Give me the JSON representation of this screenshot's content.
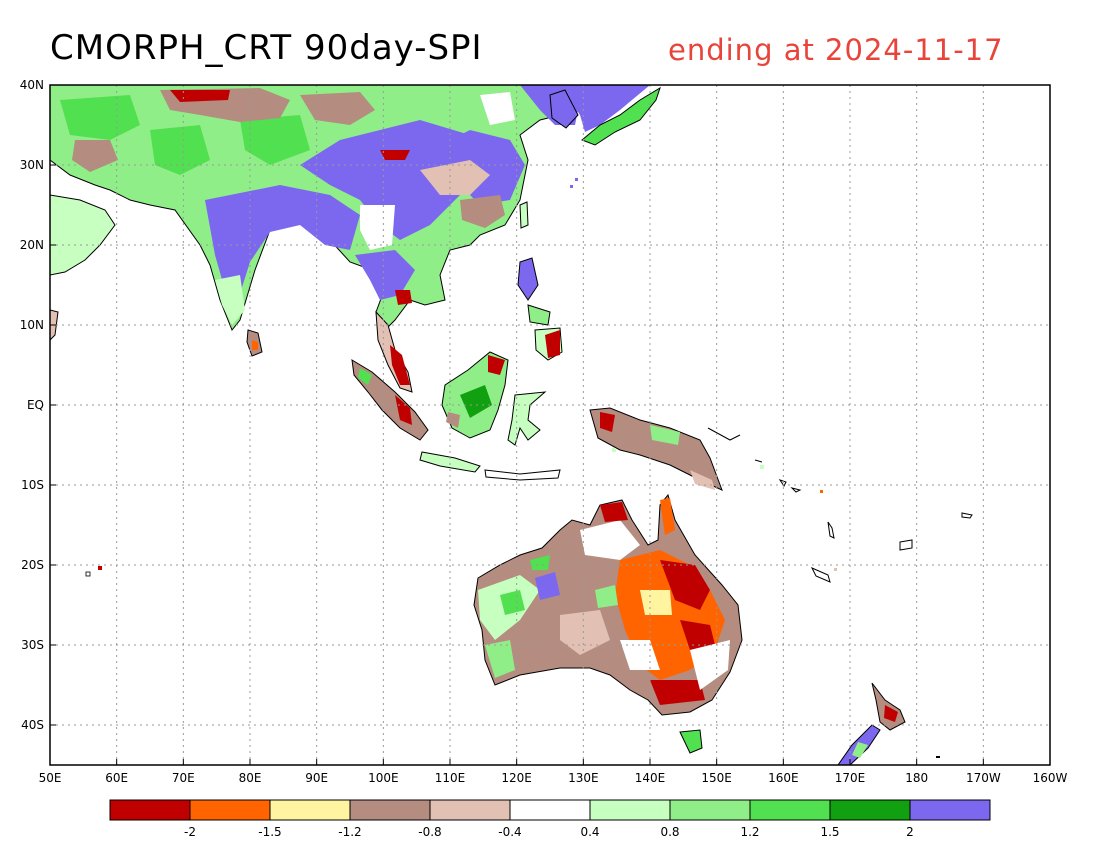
{
  "title": "CMORPH_CRT 90day-SPI",
  "subtitle": "ending at 2024-11-17",
  "map": {
    "lat_labels": [
      "40N",
      "30N",
      "20N",
      "10N",
      "EQ",
      "10S",
      "20S",
      "30S",
      "40S"
    ],
    "lon_labels": [
      "50E",
      "60E",
      "70E",
      "80E",
      "90E",
      "100E",
      "110E",
      "120E",
      "130E",
      "140E",
      "150E",
      "160E",
      "170E",
      "180",
      "170W",
      "160W"
    ],
    "lat_range": [
      -45,
      40
    ],
    "lon_range": [
      50,
      200
    ],
    "grid": "dotted"
  },
  "legend": {
    "colors": [
      "#c00000",
      "#ff6400",
      "#fff5a0",
      "#b48c80",
      "#e2c0b4",
      "#ffffff",
      "#c6ffc0",
      "#90ee88",
      "#50e050",
      "#10a010",
      "#7b68ee"
    ],
    "labels": [
      "-2",
      "-1.5",
      "-1.2",
      "-0.8",
      "-0.4",
      "0.4",
      "0.8",
      "1.2",
      "1.5",
      "2"
    ]
  },
  "colors": {
    "title": "#000000",
    "subtitle": "#e8443a",
    "wet": "#7b68ee",
    "dry": "#c00000"
  }
}
